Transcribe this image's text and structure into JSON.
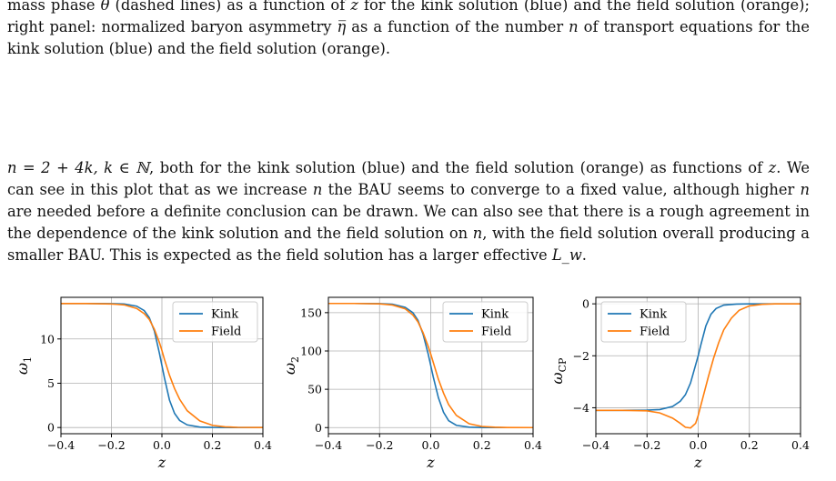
{
  "paragraph_1": [
    {
      "t": "mass phase "
    },
    {
      "m": "θ"
    },
    {
      "t": " (dashed lines) as a function of "
    },
    {
      "m": "z"
    },
    {
      "t": " for the kink solution (blue) and the field solution (orange); right panel: normalized baryon asymmetry "
    },
    {
      "m": "η̅"
    },
    {
      "t": " as a function of the number "
    },
    {
      "m": "n"
    },
    {
      "t": " of transport equations for the kink solution (blue) and the field solution (orange)."
    }
  ],
  "paragraph_2": [
    {
      "m": "n = 2 + 4k, k ∈ ℕ"
    },
    {
      "t": ", both for the kink solution (blue) and the field solution (orange) as functions of "
    },
    {
      "m": "z"
    },
    {
      "t": ". We can see in this plot that as we increase "
    },
    {
      "m": "n"
    },
    {
      "t": " the BAU seems to converge to a fixed value, although higher "
    },
    {
      "m": "n"
    },
    {
      "t": " are needed before a definite conclusion can be drawn. We can also see that there is a rough agreement in the dependence of the kink solution and the field solution on "
    },
    {
      "m": "n"
    },
    {
      "t": ", with the field solution overall producing a smaller BAU. This is expected as the field solution has a larger effective "
    },
    {
      "m": "L_w"
    },
    {
      "t": "."
    }
  ],
  "colors": {
    "kink": "#1f77b4",
    "field": "#ff7f0e",
    "grid": "#b0b0b0"
  },
  "chart_data": [
    {
      "type": "line",
      "xlabel": "z",
      "ylabel": "ω_1",
      "xlim": [
        -0.4,
        0.4
      ],
      "ylim": [
        -0.7,
        14.7
      ],
      "xticks": [
        "−0.4",
        "−0.2",
        "0.0",
        "0.2",
        "0.4"
      ],
      "xtick_values": [
        -0.4,
        -0.2,
        0,
        0.2,
        0.4
      ],
      "yticks": [
        "0",
        "5",
        "10"
      ],
      "ytick_values": [
        0,
        5,
        10
      ],
      "grid": true,
      "legend": "top-right",
      "series": [
        {
          "name": "Kink",
          "x": [
            -0.4,
            -0.3,
            -0.2,
            -0.15,
            -0.1,
            -0.07,
            -0.05,
            -0.03,
            -0.01,
            0,
            0.01,
            0.03,
            0.05,
            0.07,
            0.1,
            0.15,
            0.2,
            0.3,
            0.4
          ],
          "y": [
            14.0,
            14.0,
            13.99,
            13.95,
            13.7,
            13.2,
            12.4,
            10.9,
            8.4,
            7.0,
            5.6,
            3.1,
            1.6,
            0.8,
            0.3,
            0.05,
            0.01,
            0.0,
            0.0
          ]
        },
        {
          "name": "Field",
          "x": [
            -0.4,
            -0.3,
            -0.2,
            -0.15,
            -0.1,
            -0.07,
            -0.05,
            -0.03,
            -0.01,
            0,
            0.01,
            0.03,
            0.05,
            0.07,
            0.1,
            0.15,
            0.2,
            0.25,
            0.3,
            0.4
          ],
          "y": [
            14.0,
            14.0,
            13.95,
            13.85,
            13.45,
            12.85,
            12.2,
            11.1,
            9.6,
            8.7,
            7.7,
            5.9,
            4.4,
            3.2,
            1.9,
            0.75,
            0.25,
            0.08,
            0.02,
            0.0
          ]
        }
      ]
    },
    {
      "type": "line",
      "xlabel": "z",
      "ylabel": "ω_2",
      "xlim": [
        -0.4,
        0.4
      ],
      "ylim": [
        -8,
        170
      ],
      "xticks": [
        "−0.4",
        "−0.2",
        "0.0",
        "0.2",
        "0.4"
      ],
      "xtick_values": [
        -0.4,
        -0.2,
        0,
        0.2,
        0.4
      ],
      "yticks": [
        "0",
        "50",
        "100",
        "150"
      ],
      "ytick_values": [
        0,
        50,
        100,
        150
      ],
      "grid": true,
      "legend": "top-right",
      "series": [
        {
          "name": "Kink",
          "x": [
            -0.4,
            -0.3,
            -0.2,
            -0.15,
            -0.1,
            -0.07,
            -0.05,
            -0.03,
            -0.01,
            0,
            0.01,
            0.03,
            0.05,
            0.07,
            0.1,
            0.15,
            0.2,
            0.3,
            0.4
          ],
          "y": [
            162,
            162,
            161.8,
            161,
            157,
            150,
            140,
            122,
            96,
            81,
            66,
            39,
            20,
            9,
            3,
            0.5,
            0.1,
            0,
            0
          ]
        },
        {
          "name": "Field",
          "x": [
            -0.4,
            -0.3,
            -0.2,
            -0.15,
            -0.1,
            -0.07,
            -0.05,
            -0.03,
            -0.01,
            0,
            0.01,
            0.03,
            0.05,
            0.07,
            0.1,
            0.15,
            0.2,
            0.25,
            0.3,
            0.4
          ],
          "y": [
            162,
            162,
            161.5,
            160,
            155,
            147,
            138,
            124,
            106,
            96,
            85,
            63,
            45,
            30,
            16,
            5,
            1.5,
            0.5,
            0.1,
            0
          ]
        }
      ]
    },
    {
      "type": "line",
      "xlabel": "z",
      "ylabel": "ω_CP",
      "xlim": [
        -0.4,
        0.4
      ],
      "ylim": [
        -5.0,
        0.25
      ],
      "xticks": [
        "−0.4",
        "−0.2",
        "0.0",
        "0.2",
        "0.4"
      ],
      "xtick_values": [
        -0.4,
        -0.2,
        0,
        0.2,
        0.4
      ],
      "yticks": [
        "−4",
        "−2",
        "0"
      ],
      "ytick_values": [
        -4,
        -2,
        0
      ],
      "grid": true,
      "legend": "top-left",
      "series": [
        {
          "name": "Kink",
          "x": [
            -0.4,
            -0.3,
            -0.2,
            -0.15,
            -0.1,
            -0.07,
            -0.05,
            -0.03,
            -0.01,
            0,
            0.01,
            0.03,
            0.05,
            0.07,
            0.1,
            0.15,
            0.2,
            0.3,
            0.4
          ],
          "y": [
            -4.1,
            -4.1,
            -4.09,
            -4.07,
            -3.95,
            -3.75,
            -3.5,
            -3.05,
            -2.35,
            -2.0,
            -1.6,
            -0.85,
            -0.4,
            -0.18,
            -0.05,
            -0.01,
            0,
            0,
            0
          ]
        },
        {
          "name": "Field",
          "x": [
            -0.4,
            -0.3,
            -0.2,
            -0.15,
            -0.1,
            -0.07,
            -0.05,
            -0.03,
            -0.01,
            0,
            0.02,
            0.04,
            0.06,
            0.08,
            0.1,
            0.13,
            0.16,
            0.2,
            0.25,
            0.3,
            0.4
          ],
          "y": [
            -4.1,
            -4.1,
            -4.12,
            -4.2,
            -4.4,
            -4.6,
            -4.75,
            -4.78,
            -4.6,
            -4.3,
            -3.55,
            -2.8,
            -2.1,
            -1.5,
            -1.0,
            -0.55,
            -0.25,
            -0.08,
            -0.02,
            0,
            0
          ]
        }
      ]
    }
  ]
}
